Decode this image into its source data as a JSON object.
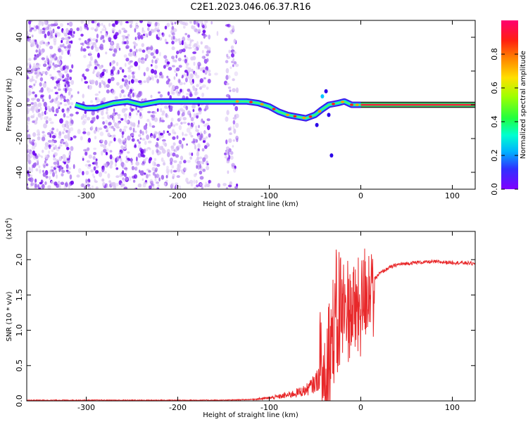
{
  "title": "C2E1.2023.046.06.37.R16",
  "colors": {
    "snr_line": "#e8282a",
    "speckle_light": "#dcc8f4",
    "speckle_mid": "#a064ee",
    "speckle_dark": "#6a00f0"
  },
  "chart_data": [
    {
      "type": "heatmap",
      "name": "spectrogram",
      "xlabel": "Height of straight line (km)",
      "ylabel": "Frequency (Hz)",
      "xlim": [
        -365,
        125
      ],
      "ylim": [
        -50,
        50
      ],
      "xticks": [
        -300,
        -200,
        -100,
        0,
        100
      ],
      "yticks": [
        -40,
        -20,
        0,
        20,
        40
      ],
      "grid": false,
      "colorbar": {
        "label": "Normalized spectral amplitude",
        "range": [
          0,
          1
        ],
        "ticks": [
          "0.0",
          "0.2",
          "0.4",
          "0.6",
          "0.8"
        ],
        "colormap": [
          "#8000ff",
          "#3030ff",
          "#00b0ff",
          "#00ffb0",
          "#40ff00",
          "#c0ff00",
          "#ffd000",
          "#ff6000",
          "#ff0030",
          "#ff0080"
        ]
      },
      "signal_track": [
        {
          "x": -312,
          "y": 0
        },
        {
          "x": -300,
          "y": -2
        },
        {
          "x": -290,
          "y": -2
        },
        {
          "x": -270,
          "y": 1
        },
        {
          "x": -255,
          "y": 2
        },
        {
          "x": -240,
          "y": 0
        },
        {
          "x": -220,
          "y": 2
        },
        {
          "x": -200,
          "y": 2
        },
        {
          "x": -180,
          "y": 2
        },
        {
          "x": -160,
          "y": 2
        },
        {
          "x": -140,
          "y": 2
        },
        {
          "x": -125,
          "y": 2
        },
        {
          "x": -112,
          "y": 1
        },
        {
          "x": -100,
          "y": -1
        },
        {
          "x": -90,
          "y": -4
        },
        {
          "x": -80,
          "y": -6
        },
        {
          "x": -70,
          "y": -7
        },
        {
          "x": -60,
          "y": -8
        },
        {
          "x": -50,
          "y": -6
        },
        {
          "x": -43,
          "y": -3
        },
        {
          "x": -35,
          "y": 0
        },
        {
          "x": -25,
          "y": 1
        },
        {
          "x": -18,
          "y": 2
        },
        {
          "x": -10,
          "y": 0
        },
        {
          "x": 0,
          "y": 0
        },
        {
          "x": 20,
          "y": 0
        },
        {
          "x": 60,
          "y": 0
        },
        {
          "x": 100,
          "y": 0
        },
        {
          "x": 125,
          "y": 0
        }
      ]
    },
    {
      "type": "line",
      "name": "snr",
      "xlabel": "Height of straight line (km)",
      "ylabel": "SNR (10 * v/v)",
      "yscale_label": "(x10",
      "yscale_exponent": "4",
      "yscale_suffix": ")",
      "xlim": [
        -365,
        125
      ],
      "ylim": [
        0,
        2.4
      ],
      "xticks": [
        -300,
        -200,
        -100,
        0,
        100
      ],
      "yticks": [
        "0.0",
        "0.5",
        "1.0",
        "1.5",
        "2.0"
      ],
      "grid": false,
      "series": [
        {
          "x": [
            -365,
            -320,
            -300,
            -250,
            -200,
            -150,
            -120,
            -100,
            -80,
            -60,
            -50,
            -40,
            -35,
            -30,
            -25,
            -22,
            -20,
            -15,
            -10,
            -5,
            0,
            5,
            10,
            15,
            20,
            30,
            40,
            60,
            80,
            100,
            120,
            125
          ],
          "y": [
            0.01,
            0.01,
            0.01,
            0.01,
            0.01,
            0.01,
            0.02,
            0.04,
            0.08,
            0.15,
            0.25,
            0.45,
            0.7,
            0.95,
            1.1,
            1.35,
            1.2,
            1.35,
            1.3,
            1.3,
            1.35,
            1.5,
            1.65,
            1.72,
            1.8,
            1.88,
            1.93,
            1.96,
            1.97,
            1.96,
            1.95,
            1.93
          ]
        }
      ]
    }
  ]
}
